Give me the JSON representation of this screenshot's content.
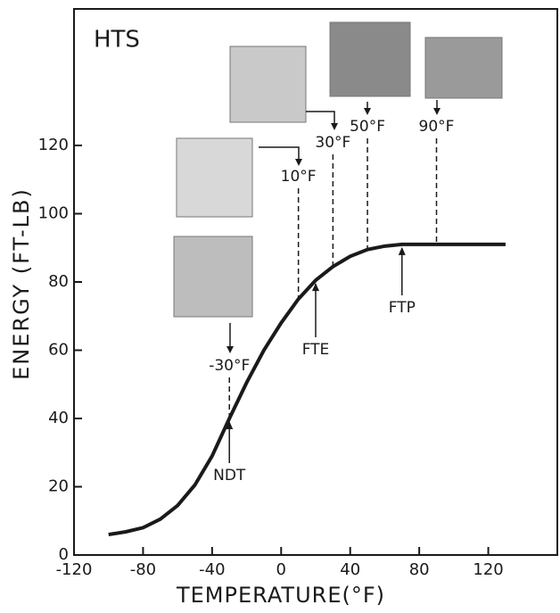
{
  "chart_data": {
    "type": "line",
    "title": "HTS",
    "x_label": "TEMPERATURE(°F)",
    "y_label": "ENERGY (FT-LB)",
    "x": [
      -100,
      -90,
      -80,
      -70,
      -60,
      -50,
      -40,
      -30,
      -20,
      -10,
      0,
      10,
      20,
      30,
      40,
      50,
      60,
      70,
      80,
      90,
      100,
      110,
      120,
      130
    ],
    "series": [
      {
        "name": "HTS",
        "color": "#1a1a1a",
        "values": [
          6,
          6.8,
          8,
          10.5,
          14.5,
          20.5,
          29,
          40,
          50.5,
          60,
          68,
          75,
          80.5,
          84.5,
          87.5,
          89.5,
          90.5,
          91,
          91,
          91,
          91,
          91,
          91,
          91
        ]
      }
    ],
    "xlim": [
      -120,
      160
    ],
    "xticks": [
      -120,
      -80,
      -40,
      0,
      40,
      80,
      120
    ],
    "ylim": [
      0,
      160
    ],
    "yticks": [
      0,
      20,
      40,
      60,
      80,
      100,
      120
    ],
    "temperature_markers": [
      {
        "label": "-30°F",
        "x": -30
      },
      {
        "label": "10°F",
        "x": 10
      },
      {
        "label": "30°F",
        "x": 30
      },
      {
        "label": "50°F",
        "x": 50
      },
      {
        "label": "90°F",
        "x": 90
      }
    ],
    "point_labels": [
      {
        "label": "NDT",
        "x": -30
      },
      {
        "label": "FTE",
        "x": 20
      },
      {
        "label": "FTP",
        "x": 70
      }
    ]
  }
}
